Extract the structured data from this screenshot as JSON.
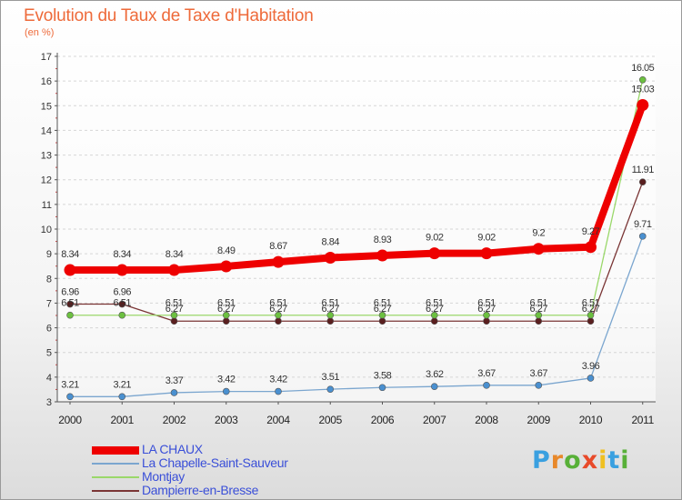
{
  "logo": {
    "text": "Proxiti",
    "colors": [
      "#3aa0e0",
      "#e8882a",
      "#58b038",
      "#e84a2a",
      "#f0c020",
      "#3aa0e0",
      "#58b038"
    ]
  },
  "chart_data": {
    "type": "line",
    "title": "Evolution du Taux de Taxe d'Habitation",
    "subtitle": "(en %)",
    "xlabel": "",
    "ylabel": "",
    "ylim": [
      3,
      17
    ],
    "yticks": [
      "3",
      "4",
      "5",
      "6",
      "7",
      "8",
      "9",
      "10",
      "11",
      "12",
      "13",
      "14",
      "15",
      "16",
      "17"
    ],
    "categories": [
      "2000",
      "2001",
      "2002",
      "2003",
      "2004",
      "2005",
      "2006",
      "2007",
      "2008",
      "2009",
      "2010",
      "2011"
    ],
    "grid": "dashed-horizontal",
    "legend_position": "bottom-left",
    "series": [
      {
        "name": "La Chapelle-Saint-Sauveur",
        "color": "#7ba6cf",
        "marker": "#4a90d0",
        "width": 1.3,
        "radius": 3.5,
        "values": [
          3.21,
          3.21,
          3.37,
          3.42,
          3.42,
          3.51,
          3.58,
          3.62,
          3.67,
          3.67,
          3.96,
          9.71
        ],
        "labels": [
          "3.21",
          "3.21",
          "3.37",
          "3.42",
          "3.42",
          "3.51",
          "3.58",
          "3.62",
          "3.67",
          "3.67",
          "3.96",
          "9.71"
        ]
      },
      {
        "name": "Dampierre-en-Bresse",
        "color": "#7a3535",
        "marker": "#5a1f1f",
        "width": 1.3,
        "radius": 3.5,
        "values": [
          6.96,
          6.96,
          6.27,
          6.27,
          6.27,
          6.27,
          6.27,
          6.27,
          6.27,
          6.27,
          6.27,
          11.91
        ],
        "labels": [
          "6.96",
          "6.96",
          "6.27",
          "6.27",
          "6.27",
          "6.27",
          "6.27",
          "6.27",
          "6.27",
          "6.27",
          "6.27",
          "11.91"
        ]
      },
      {
        "name": "Montjay",
        "color": "#9ad86a",
        "marker": "#6cc040",
        "width": 1.3,
        "radius": 3.5,
        "values": [
          6.51,
          6.51,
          6.51,
          6.51,
          6.51,
          6.51,
          6.51,
          6.51,
          6.51,
          6.51,
          6.51,
          16.05
        ],
        "labels": [
          "6.51",
          "6.51",
          "6.51",
          "6.51",
          "6.51",
          "6.51",
          "6.51",
          "6.51",
          "6.51",
          "6.51",
          "6.51",
          "16.05"
        ]
      },
      {
        "name": "LA CHAUX",
        "color": "#ee0000",
        "marker": "#ee0000",
        "width": 8,
        "radius": 6.5,
        "values": [
          8.34,
          8.34,
          8.34,
          8.49,
          8.67,
          8.84,
          8.93,
          9.02,
          9.02,
          9.2,
          9.27,
          15.03
        ],
        "labels": [
          "8.34",
          "8.34",
          "8.34",
          "8.49",
          "8.67",
          "8.84",
          "8.93",
          "9.02",
          "9.02",
          "9.2",
          "9.27",
          "15.03"
        ]
      }
    ],
    "legend": [
      {
        "name": "LA CHAUX",
        "color": "#ee0000",
        "thickness": 9
      },
      {
        "name": "La Chapelle-Saint-Sauveur",
        "color": "#7ba6cf",
        "thickness": 2
      },
      {
        "name": "Montjay",
        "color": "#9ad86a",
        "thickness": 2
      },
      {
        "name": "Dampierre-en-Bresse",
        "color": "#7a3535",
        "thickness": 2
      }
    ]
  }
}
